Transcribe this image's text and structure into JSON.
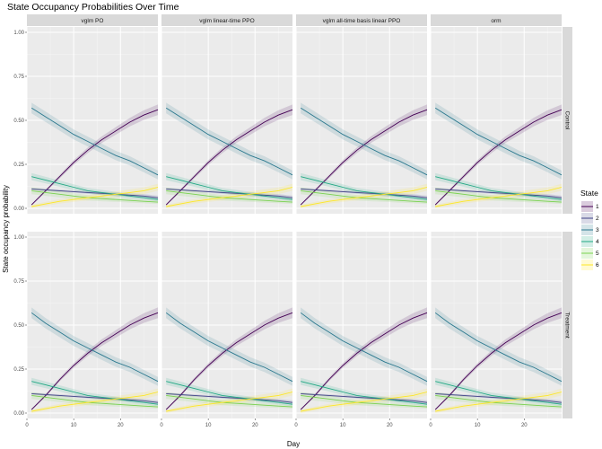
{
  "title": "State Occupancy Probabilities Over Time",
  "chart_data": {
    "type": "line",
    "title": "State Occupancy Probabilities Over Time",
    "xlabel": "Day",
    "ylabel": "State occupancy probability",
    "xlim": [
      0,
      28
    ],
    "ylim": [
      0,
      1
    ],
    "x_ticks": [
      0,
      10,
      20
    ],
    "y_ticks": [
      0,
      0.25,
      0.5,
      0.75,
      1
    ],
    "y_tick_labels": [
      "0.00",
      "0.25",
      "0.50",
      "0.75",
      "1.00"
    ],
    "grid": true,
    "legend_position": "right",
    "legend_title": "State",
    "panel_columns": [
      "vglm PO",
      "vglm linear-time PPO",
      "vglm all-time basis linear PPO",
      "orm"
    ],
    "panel_rows": [
      "Control",
      "Treatment"
    ],
    "x": [
      1,
      4,
      7,
      10,
      13,
      16,
      19,
      22,
      25,
      28
    ],
    "series": [
      {
        "name": "1",
        "color": "#440154",
        "band": [
          0.005,
          0.03
        ],
        "values": {
          "Control": [
            0.02,
            0.1,
            0.18,
            0.26,
            0.33,
            0.39,
            0.44,
            0.49,
            0.53,
            0.56
          ],
          "Treatment": [
            0.02,
            0.1,
            0.19,
            0.27,
            0.34,
            0.4,
            0.45,
            0.5,
            0.54,
            0.57
          ]
        }
      },
      {
        "name": "2",
        "color": "#414487",
        "band": [
          0.005,
          0.012
        ],
        "values": {
          "Control": [
            0.11,
            0.105,
            0.1,
            0.095,
            0.09,
            0.085,
            0.08,
            0.075,
            0.07,
            0.06
          ],
          "Treatment": [
            0.11,
            0.105,
            0.1,
            0.095,
            0.09,
            0.085,
            0.08,
            0.075,
            0.07,
            0.06
          ]
        }
      },
      {
        "name": "3",
        "color": "#2A788E",
        "band": [
          0.03,
          0.025
        ],
        "values": {
          "Control": [
            0.57,
            0.52,
            0.47,
            0.42,
            0.38,
            0.34,
            0.3,
            0.27,
            0.23,
            0.19
          ],
          "Treatment": [
            0.57,
            0.51,
            0.46,
            0.41,
            0.37,
            0.33,
            0.29,
            0.26,
            0.22,
            0.18
          ]
        }
      },
      {
        "name": "4",
        "color": "#22A884",
        "band": [
          0.02,
          0.01
        ],
        "values": {
          "Control": [
            0.18,
            0.16,
            0.14,
            0.12,
            0.1,
            0.09,
            0.08,
            0.07,
            0.06,
            0.05
          ],
          "Treatment": [
            0.18,
            0.16,
            0.14,
            0.12,
            0.1,
            0.09,
            0.08,
            0.07,
            0.06,
            0.05
          ]
        }
      },
      {
        "name": "5",
        "color": "#7AD151",
        "band": [
          0.02,
          0.01
        ],
        "values": {
          "Control": [
            0.1,
            0.09,
            0.08,
            0.07,
            0.06,
            0.055,
            0.05,
            0.045,
            0.04,
            0.035
          ],
          "Treatment": [
            0.1,
            0.09,
            0.08,
            0.07,
            0.06,
            0.055,
            0.05,
            0.045,
            0.04,
            0.035
          ]
        }
      },
      {
        "name": "6",
        "color": "#FDE725",
        "band": [
          0.01,
          0.02
        ],
        "values": {
          "Control": [
            0.01,
            0.025,
            0.04,
            0.05,
            0.06,
            0.07,
            0.08,
            0.09,
            0.1,
            0.12
          ],
          "Treatment": [
            0.01,
            0.025,
            0.04,
            0.05,
            0.06,
            0.07,
            0.08,
            0.09,
            0.1,
            0.12
          ]
        }
      }
    ]
  }
}
